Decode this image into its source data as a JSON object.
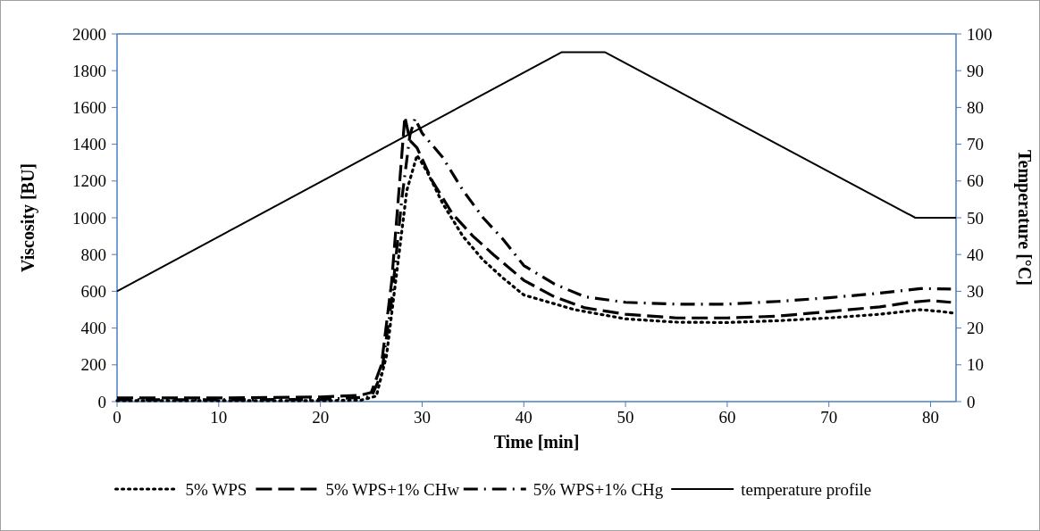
{
  "chart_data": {
    "type": "line",
    "xlabel": "Time [min]",
    "ylabel": "Viscosity [BU]",
    "y2label": "Temperature [°C]",
    "xlim": [
      0,
      82.5
    ],
    "xticks": [
      0,
      10,
      20,
      30,
      40,
      50,
      60,
      70,
      80
    ],
    "ylim": [
      0,
      2000
    ],
    "yticks": [
      0,
      200,
      400,
      600,
      800,
      1000,
      1200,
      1400,
      1600,
      1800,
      2000
    ],
    "y2lim": [
      0,
      100
    ],
    "y2ticks": [
      0,
      10,
      20,
      30,
      40,
      50,
      60,
      70,
      80,
      90,
      100
    ],
    "grid": false,
    "legend": "bottom",
    "marker": "none",
    "series": [
      {
        "name": "5% WPS",
        "color": "#000000",
        "line_style": "dotted",
        "x": [
          0,
          10,
          20,
          24,
          25.5,
          26.5,
          27.5,
          28.5,
          29.5,
          30.5,
          32,
          34,
          36,
          38,
          40,
          45,
          50,
          55,
          60,
          65,
          70,
          75,
          79,
          81,
          82.5
        ],
        "values": [
          5,
          5,
          5,
          8,
          30,
          250,
          700,
          1150,
          1340,
          1250,
          1080,
          900,
          770,
          670,
          580,
          500,
          450,
          432,
          430,
          440,
          455,
          475,
          500,
          490,
          480
        ]
      },
      {
        "name": "5% WPS+1% CHw",
        "color": "#000000",
        "line_style": "dashed",
        "x": [
          0,
          10,
          20,
          24,
          25,
          26,
          27,
          27.8,
          28.3,
          28.8,
          29.5,
          31,
          33,
          35,
          37,
          40,
          43,
          46,
          50,
          55,
          60,
          65,
          70,
          75,
          78,
          80,
          82
        ],
        "values": [
          20,
          20,
          25,
          35,
          50,
          200,
          650,
          1200,
          1550,
          1420,
          1380,
          1200,
          1020,
          900,
          800,
          660,
          570,
          510,
          475,
          455,
          455,
          465,
          490,
          515,
          540,
          550,
          540
        ]
      },
      {
        "name": "5% WPS+1% CHg",
        "color": "#000000",
        "line_style": "dashdot",
        "x": [
          0,
          10,
          20,
          25,
          26,
          27,
          28,
          28.8,
          29.3,
          30,
          32,
          34,
          36,
          38,
          40,
          43,
          46,
          50,
          55,
          60,
          65,
          70,
          75,
          79,
          82
        ],
        "values": [
          10,
          10,
          12,
          25,
          150,
          550,
          1100,
          1450,
          1540,
          1460,
          1330,
          1150,
          1000,
          880,
          740,
          640,
          570,
          540,
          530,
          530,
          545,
          565,
          590,
          615,
          612
        ]
      },
      {
        "name": "temperature profile",
        "color": "#000000",
        "line_style": "solid",
        "axis": "y2",
        "x": [
          0,
          43.7,
          48,
          78.5,
          82.5
        ],
        "values": [
          30,
          95,
          95,
          50,
          50
        ]
      }
    ]
  }
}
